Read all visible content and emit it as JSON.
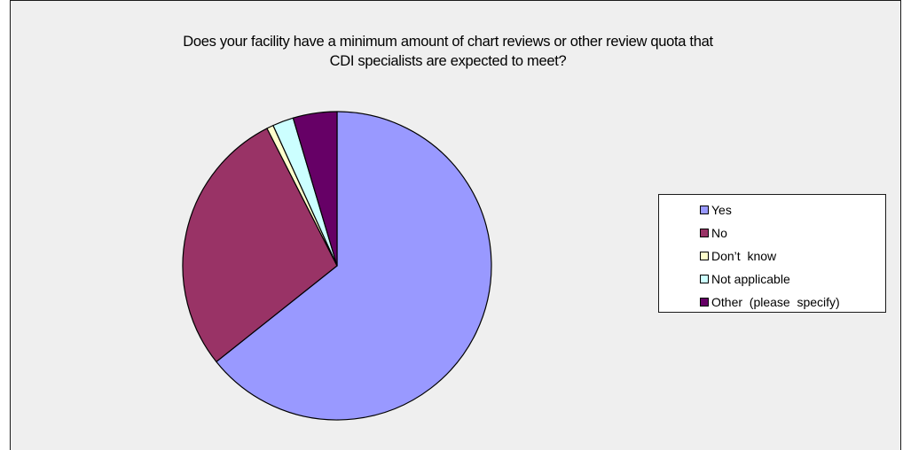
{
  "chart_data": {
    "type": "pie",
    "title": "Does your facility have a minimum amount of chart reviews or other review quota that CDI specialists are expected to meet?",
    "title_lines": [
      "Does your facility have a minimum amount of chart reviews or other review quota that",
      "CDI specialists are expected to meet?"
    ],
    "categories": [
      "Yes",
      "No",
      "Don’t  know",
      "Not applicable",
      "Other  (please  specify)"
    ],
    "values": [
      64.3,
      28.2,
      0.7,
      2.2,
      4.6
    ],
    "colors": [
      "#9999ff",
      "#993366",
      "#ffffcc",
      "#ccffff",
      "#660066"
    ],
    "start_angle_deg": 0,
    "direction": "clockwise",
    "legend_position": "right",
    "background": "#efefef"
  }
}
